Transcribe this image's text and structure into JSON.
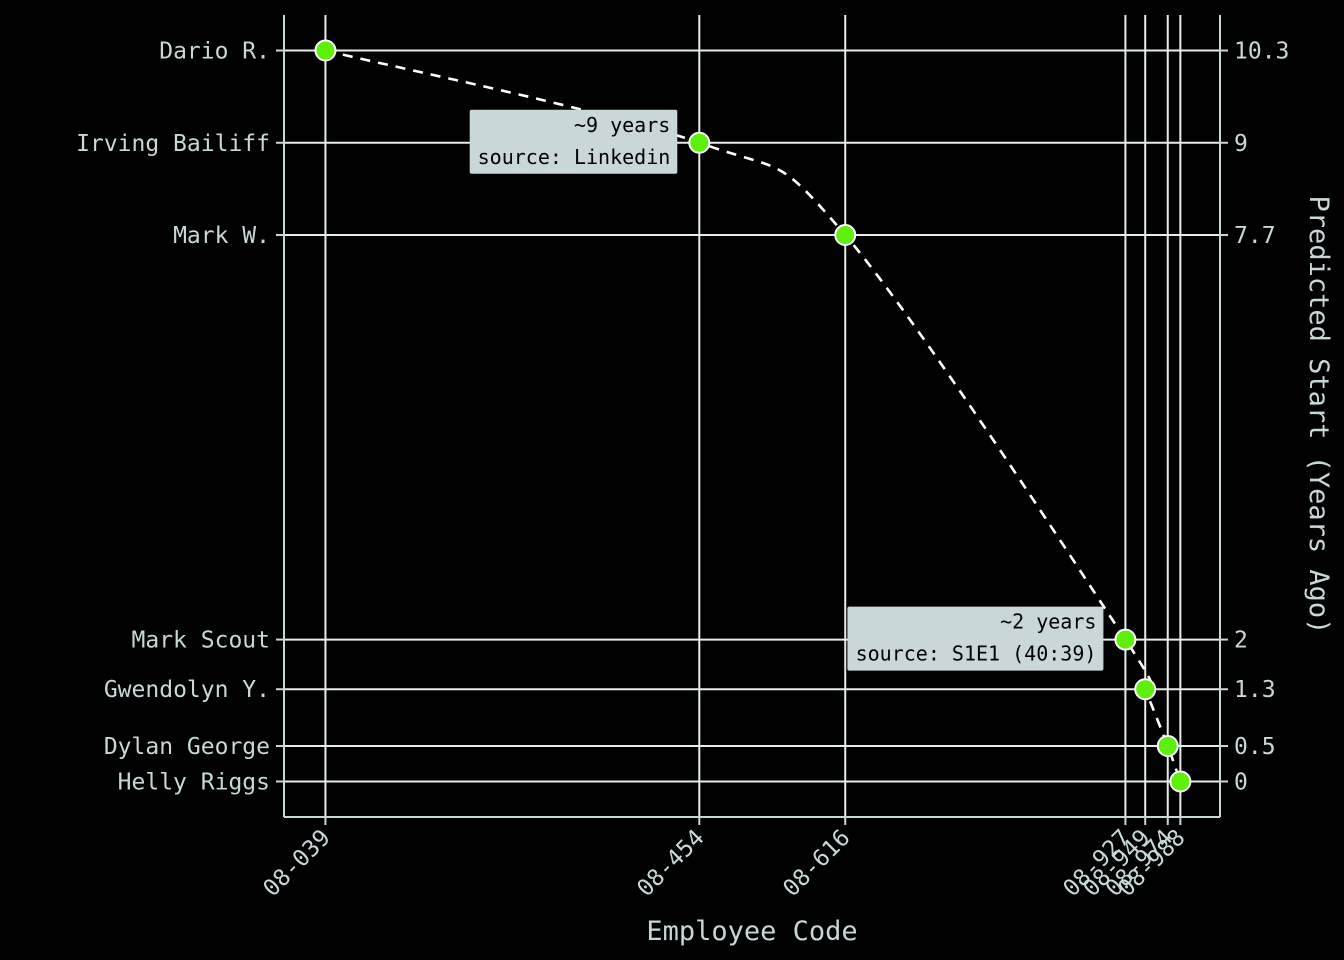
{
  "chart_data": {
    "type": "scatter",
    "xlabel": "Employee Code",
    "ylabel": "Predicted Start (Years Ago)",
    "x_ticks": [
      "08-039",
      "08-454",
      "08-616",
      "08-927",
      "08-949",
      "08-974",
      "08-988"
    ],
    "x_tick_values": [
      39,
      454,
      616,
      927,
      949,
      974,
      988
    ],
    "y_ticks_right": [
      "10.3",
      "9",
      "7.7",
      "2",
      "1.3",
      "0.5",
      "0"
    ],
    "y_tick_values": [
      10.3,
      9,
      7.7,
      2,
      1.3,
      0.5,
      0
    ],
    "series": [
      {
        "x": [
          39,
          454,
          616,
          927,
          949,
          974,
          988
        ],
        "y": [
          10.3,
          9,
          7.7,
          2,
          1.3,
          0.5,
          0
        ],
        "labels": [
          "Dario R.",
          "Irving Bailiff",
          "Mark W.",
          "Mark Scout",
          "Gwendolyn Y.",
          "Dylan George",
          "Helly Riggs"
        ],
        "color": "#5cf00a"
      }
    ],
    "trend": {
      "style": "dashed",
      "color": "#ffffff"
    },
    "annotations": [
      {
        "x": 454,
        "y": 9,
        "lines": [
          "~9 years",
          "source: Linkedin"
        ]
      },
      {
        "x": 927,
        "y": 2,
        "lines": [
          "~2 years",
          "source: S1E1 (40:39)"
        ]
      }
    ],
    "xlim": [
      -7,
      1032
    ],
    "ylim": [
      -0.5,
      10.8
    ],
    "grid": true,
    "colors": {
      "background": "#000000",
      "grid": "#e6eded",
      "text": "#c8d8d8",
      "annotation_box": "#c9d7d9"
    }
  }
}
